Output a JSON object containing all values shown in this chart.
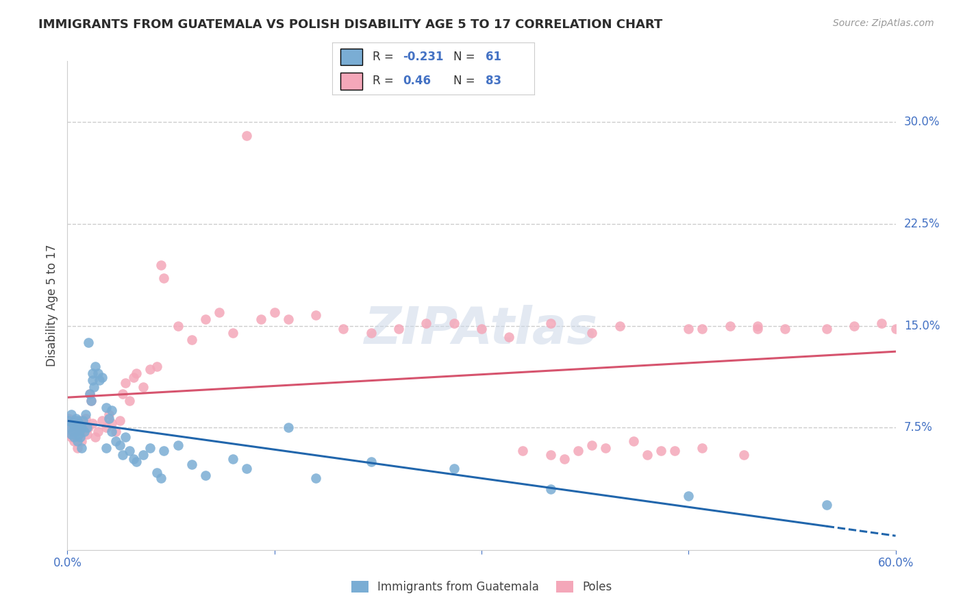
{
  "title": "IMMIGRANTS FROM GUATEMALA VS POLISH DISABILITY AGE 5 TO 17 CORRELATION CHART",
  "source": "Source: ZipAtlas.com",
  "ylabel": "Disability Age 5 to 17",
  "xlim": [
    0.0,
    0.6
  ],
  "ylim": [
    -0.015,
    0.345
  ],
  "ytick_positions": [
    0.075,
    0.15,
    0.225,
    0.3
  ],
  "ytick_labels": [
    "7.5%",
    "15.0%",
    "22.5%",
    "30.0%"
  ],
  "legend_labels": [
    "Immigrants from Guatemala",
    "Poles"
  ],
  "blue_R": -0.231,
  "blue_N": 61,
  "pink_R": 0.46,
  "pink_N": 83,
  "blue_color": "#7aadd4",
  "pink_color": "#f4a7b9",
  "blue_line_color": "#2166ac",
  "pink_line_color": "#d6546e",
  "watermark": "ZIPAtlas",
  "background_color": "#ffffff",
  "grid_color": "#cccccc",
  "axis_label_color": "#4472c4",
  "title_color": "#2c2c2c",
  "source_color": "#999999",
  "blue_scatter_x": [
    0.001,
    0.002,
    0.003,
    0.003,
    0.004,
    0.004,
    0.005,
    0.005,
    0.006,
    0.007,
    0.007,
    0.007,
    0.008,
    0.008,
    0.009,
    0.009,
    0.01,
    0.01,
    0.011,
    0.012,
    0.013,
    0.014,
    0.015,
    0.016,
    0.017,
    0.018,
    0.018,
    0.019,
    0.02,
    0.022,
    0.023,
    0.025,
    0.028,
    0.028,
    0.03,
    0.032,
    0.032,
    0.035,
    0.038,
    0.04,
    0.042,
    0.045,
    0.048,
    0.05,
    0.055,
    0.06,
    0.065,
    0.068,
    0.07,
    0.08,
    0.09,
    0.1,
    0.12,
    0.13,
    0.16,
    0.18,
    0.22,
    0.28,
    0.35,
    0.45,
    0.55
  ],
  "blue_scatter_y": [
    0.08,
    0.075,
    0.07,
    0.085,
    0.078,
    0.072,
    0.068,
    0.076,
    0.082,
    0.065,
    0.075,
    0.08,
    0.07,
    0.078,
    0.073,
    0.068,
    0.075,
    0.06,
    0.08,
    0.072,
    0.085,
    0.075,
    0.138,
    0.1,
    0.095,
    0.115,
    0.11,
    0.105,
    0.12,
    0.115,
    0.11,
    0.112,
    0.09,
    0.06,
    0.082,
    0.088,
    0.072,
    0.065,
    0.062,
    0.055,
    0.068,
    0.058,
    0.052,
    0.05,
    0.055,
    0.06,
    0.042,
    0.038,
    0.058,
    0.062,
    0.048,
    0.04,
    0.052,
    0.045,
    0.075,
    0.038,
    0.05,
    0.045,
    0.03,
    0.025,
    0.018
  ],
  "pink_scatter_x": [
    0.001,
    0.002,
    0.003,
    0.003,
    0.004,
    0.005,
    0.005,
    0.006,
    0.007,
    0.007,
    0.008,
    0.008,
    0.009,
    0.01,
    0.01,
    0.011,
    0.012,
    0.013,
    0.014,
    0.015,
    0.016,
    0.017,
    0.018,
    0.02,
    0.022,
    0.025,
    0.028,
    0.03,
    0.032,
    0.035,
    0.038,
    0.04,
    0.042,
    0.045,
    0.048,
    0.05,
    0.055,
    0.06,
    0.065,
    0.068,
    0.07,
    0.08,
    0.09,
    0.1,
    0.11,
    0.12,
    0.13,
    0.14,
    0.15,
    0.16,
    0.18,
    0.2,
    0.22,
    0.24,
    0.26,
    0.28,
    0.3,
    0.32,
    0.35,
    0.38,
    0.4,
    0.45,
    0.48,
    0.5,
    0.52,
    0.55,
    0.57,
    0.59,
    0.6,
    0.38,
    0.42,
    0.44,
    0.46,
    0.49,
    0.33,
    0.35,
    0.36,
    0.37,
    0.39,
    0.41,
    0.43,
    0.46,
    0.5
  ],
  "pink_scatter_y": [
    0.082,
    0.075,
    0.07,
    0.068,
    0.072,
    0.065,
    0.08,
    0.078,
    0.073,
    0.06,
    0.075,
    0.068,
    0.08,
    0.072,
    0.065,
    0.075,
    0.078,
    0.082,
    0.07,
    0.075,
    0.1,
    0.095,
    0.078,
    0.068,
    0.072,
    0.08,
    0.075,
    0.085,
    0.078,
    0.072,
    0.08,
    0.1,
    0.108,
    0.095,
    0.112,
    0.115,
    0.105,
    0.118,
    0.12,
    0.195,
    0.185,
    0.15,
    0.14,
    0.155,
    0.16,
    0.145,
    0.29,
    0.155,
    0.16,
    0.155,
    0.158,
    0.148,
    0.145,
    0.148,
    0.152,
    0.152,
    0.148,
    0.142,
    0.152,
    0.145,
    0.15,
    0.148,
    0.15,
    0.15,
    0.148,
    0.148,
    0.15,
    0.152,
    0.148,
    0.062,
    0.055,
    0.058,
    0.06,
    0.055,
    0.058,
    0.055,
    0.052,
    0.058,
    0.06,
    0.065,
    0.058,
    0.148,
    0.148
  ]
}
